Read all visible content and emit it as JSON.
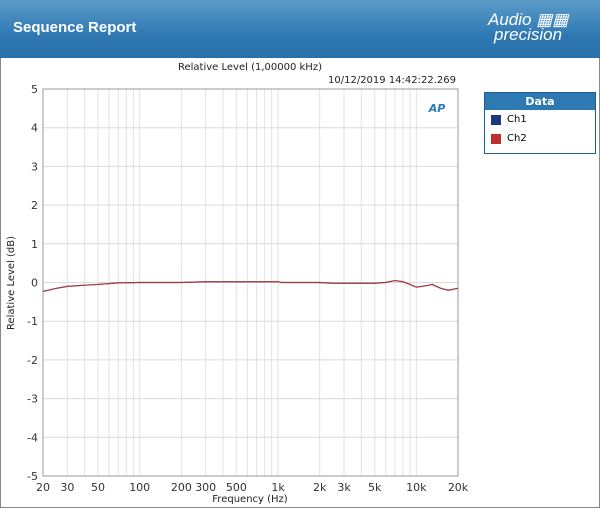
{
  "header": {
    "title": "Sequence Report",
    "logo_text": "Audio precision"
  },
  "chart_data": {
    "type": "line",
    "title": "Relative Level (1,00000 kHz)",
    "timestamp": "10/12/2019 14:42:22.269",
    "xlabel": "Frequency (Hz)",
    "ylabel": "Relative Level (dB)",
    "xscale": "log",
    "xlim": [
      20,
      20000
    ],
    "ylim": [
      -5,
      5
    ],
    "grid": true,
    "xticks": [
      20,
      30,
      50,
      100,
      200,
      300,
      500,
      1000,
      2000,
      3000,
      5000,
      10000,
      20000
    ],
    "xtick_labels": [
      "20",
      "30",
      "50",
      "100",
      "200",
      "300",
      "500",
      "1k",
      "2k",
      "3k",
      "5k",
      "10k",
      "20k"
    ],
    "yticks": [
      -5,
      -4,
      -3,
      -2,
      -1,
      0,
      1,
      2,
      3,
      4,
      5
    ],
    "legend": {
      "title": "Data",
      "placement": "right",
      "entries": [
        {
          "name": "Ch1",
          "color": "#1a3a7a"
        },
        {
          "name": "Ch2",
          "color": "#c0302a"
        }
      ]
    },
    "series": [
      {
        "name": "Ch1",
        "color": "#1a3a7a",
        "x": [
          20,
          25,
          30,
          40,
          50,
          70,
          100,
          200,
          300,
          500,
          1000,
          1050,
          2000,
          2500,
          5000,
          6000,
          7000,
          8000,
          9000,
          10000,
          12000,
          13000,
          15000,
          17000,
          20000
        ],
        "y": [
          -0.23,
          -0.15,
          -0.1,
          -0.07,
          -0.05,
          -0.01,
          0,
          0,
          0.02,
          0.02,
          0.02,
          0,
          0,
          -0.02,
          -0.02,
          0,
          0.05,
          0.02,
          -0.05,
          -0.12,
          -0.08,
          -0.05,
          -0.15,
          -0.2,
          -0.15
        ]
      },
      {
        "name": "Ch2",
        "color": "#c0302a",
        "x": [
          20,
          25,
          30,
          40,
          50,
          70,
          100,
          200,
          300,
          500,
          1000,
          1050,
          2000,
          2500,
          5000,
          6000,
          7000,
          8000,
          9000,
          10000,
          12000,
          13000,
          15000,
          17000,
          20000
        ],
        "y": [
          -0.23,
          -0.15,
          -0.1,
          -0.07,
          -0.05,
          -0.01,
          0,
          0,
          0.02,
          0.02,
          0.02,
          0,
          0,
          -0.02,
          -0.02,
          0,
          0.05,
          0.02,
          -0.05,
          -0.12,
          -0.08,
          -0.05,
          -0.15,
          -0.2,
          -0.15
        ]
      }
    ]
  }
}
